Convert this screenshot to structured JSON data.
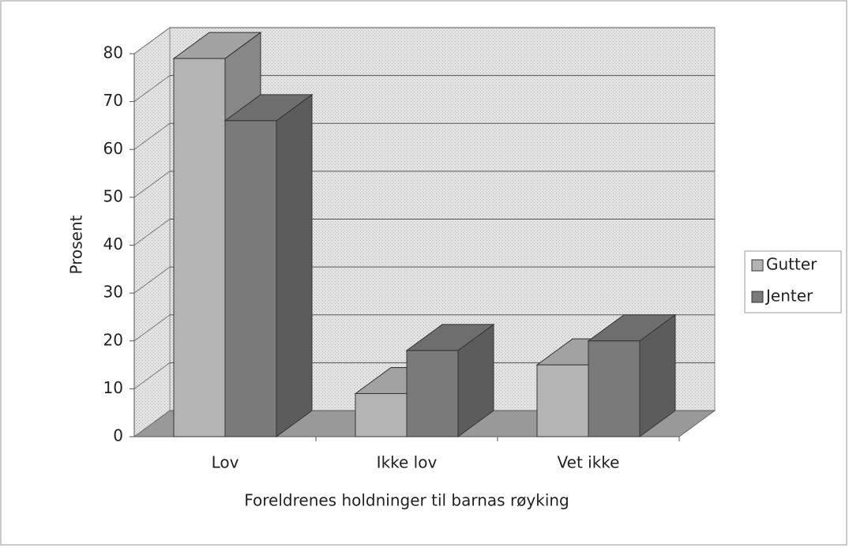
{
  "chart_data": {
    "type": "bar3d",
    "x_label": "Foreldrenes holdninger til barnas røyking",
    "y_label": "Prosent",
    "categories": [
      "Lov",
      "Ikke lov",
      "Vet ikke"
    ],
    "series": [
      {
        "name": "Gutter",
        "color": "#b4b4b4",
        "values": [
          79,
          9,
          15
        ]
      },
      {
        "name": "Jenter",
        "color": "#7a7a7a",
        "values": [
          66,
          18,
          20
        ]
      }
    ],
    "ylim": [
      0,
      80
    ],
    "yticks": [
      0,
      10,
      20,
      30,
      40,
      50,
      60,
      70,
      80
    ],
    "grid": true,
    "legend": "right"
  }
}
